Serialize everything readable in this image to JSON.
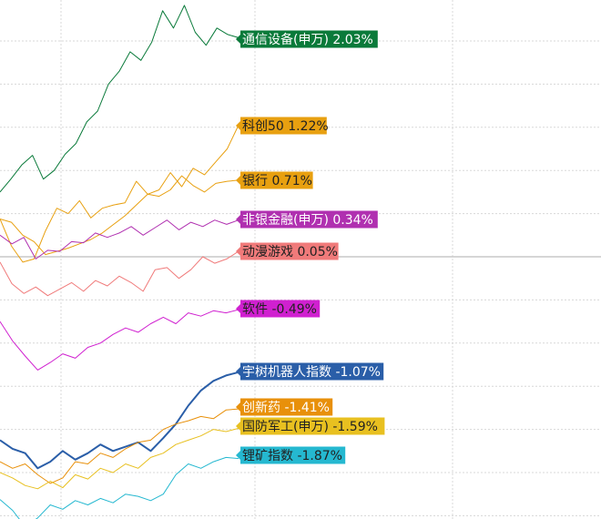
{
  "chart_data": {
    "type": "line",
    "title": "",
    "xlabel": "",
    "ylabel": "",
    "grid": true,
    "zero_line": true,
    "legend": "inline-right",
    "series": [
      {
        "name": "通信设备(申万)",
        "label": "通信设备(申万) 2.03%",
        "color": "#0a7a3a",
        "text_color": "#ffffff",
        "values": [
          0.6,
          0.72,
          0.85,
          0.94,
          0.72,
          0.8,
          0.95,
          1.05,
          1.25,
          1.35,
          1.6,
          1.72,
          1.9,
          1.82,
          1.99,
          2.28,
          2.12,
          2.33,
          2.08,
          1.96,
          2.12,
          2.06,
          2.03
        ]
      },
      {
        "name": "科创50",
        "label": "科创50 1.22%",
        "color": "#e8a010",
        "text_color": "#222222",
        "values": [
          0.35,
          0.1,
          -0.05,
          -0.02,
          0.24,
          0.45,
          0.4,
          0.52,
          0.36,
          0.45,
          0.48,
          0.5,
          0.7,
          0.58,
          0.62,
          0.78,
          0.65,
          0.82,
          0.76,
          0.88,
          1.0,
          1.22
        ]
      },
      {
        "name": "银行",
        "label": "银行 0.71%",
        "color": "#e8a010",
        "text_color": "#222222",
        "values": [
          0.35,
          0.32,
          0.2,
          0.14,
          0.02,
          0.05,
          0.08,
          0.12,
          0.16,
          0.22,
          0.3,
          0.38,
          0.48,
          0.58,
          0.56,
          0.62,
          0.75,
          0.66,
          0.6,
          0.68,
          0.7,
          0.71
        ]
      },
      {
        "name": "非银金融(申万)",
        "label": "非银金融(申万) 0.34%",
        "color": "#b030b0",
        "text_color": "#ffffff",
        "values": [
          0.2,
          0.12,
          0.18,
          -0.02,
          0.06,
          0.05,
          0.14,
          0.13,
          0.22,
          0.18,
          0.22,
          0.28,
          0.2,
          0.27,
          0.34,
          0.25,
          0.32,
          0.28,
          0.34,
          0.3,
          0.34
        ]
      },
      {
        "name": "动漫游戏",
        "label": "动漫游戏 0.05%",
        "color": "#f07a7a",
        "text_color": "#222222",
        "values": [
          -0.05,
          -0.25,
          -0.34,
          -0.28,
          -0.36,
          -0.3,
          -0.24,
          -0.32,
          -0.22,
          -0.27,
          -0.18,
          -0.24,
          -0.32,
          -0.12,
          -0.1,
          -0.2,
          -0.12,
          0.0,
          -0.06,
          -0.02,
          0.05
        ]
      },
      {
        "name": "软件",
        "label": "软件 -0.49%",
        "color": "#d020d0",
        "text_color": "#222222",
        "values": [
          -0.6,
          -0.78,
          -0.92,
          -1.05,
          -0.98,
          -0.9,
          -0.94,
          -0.84,
          -0.8,
          -0.72,
          -0.66,
          -0.7,
          -0.62,
          -0.56,
          -0.62,
          -0.52,
          -0.55,
          -0.5,
          -0.52,
          -0.49
        ]
      },
      {
        "name": "宇树机器人指数",
        "label": "宇树机器人指数 -1.07%",
        "color": "#2a5ea8",
        "text_color": "#ffffff",
        "values": [
          -1.7,
          -1.78,
          -1.82,
          -1.96,
          -1.9,
          -1.8,
          -1.88,
          -1.82,
          -1.74,
          -1.8,
          -1.76,
          -1.72,
          -1.8,
          -1.68,
          -1.55,
          -1.38,
          -1.24,
          -1.15,
          -1.1,
          -1.07
        ]
      },
      {
        "name": "创新药",
        "label": "创新药 -1.41%",
        "color": "#e8900a",
        "text_color": "#ffffff",
        "values": [
          -1.9,
          -1.96,
          -1.92,
          -2.02,
          -2.1,
          -2.05,
          -1.9,
          -1.92,
          -1.82,
          -1.86,
          -1.78,
          -1.72,
          -1.7,
          -1.6,
          -1.55,
          -1.52,
          -1.48,
          -1.5,
          -1.42,
          -1.41
        ]
      },
      {
        "name": "国防军工(申万)",
        "label": "国防军工(申万) -1.59%",
        "color": "#e8c020",
        "text_color": "#222222",
        "values": [
          -2.0,
          -2.05,
          -2.12,
          -2.15,
          -2.08,
          -2.14,
          -2.02,
          -2.06,
          -1.96,
          -2.0,
          -1.92,
          -1.96,
          -1.86,
          -1.82,
          -1.74,
          -1.7,
          -1.66,
          -1.6,
          -1.62,
          -1.59
        ]
      },
      {
        "name": "锂矿指数",
        "label": "锂矿指数 -1.87%",
        "color": "#25b8d0",
        "text_color": "#222222",
        "values": [
          -2.25,
          -2.35,
          -2.5,
          -2.42,
          -2.3,
          -2.34,
          -2.26,
          -2.3,
          -2.24,
          -2.28,
          -2.2,
          -2.22,
          -2.26,
          -2.2,
          -2.02,
          -1.92,
          -1.96,
          -1.9,
          -1.86,
          -1.87
        ]
      }
    ]
  }
}
